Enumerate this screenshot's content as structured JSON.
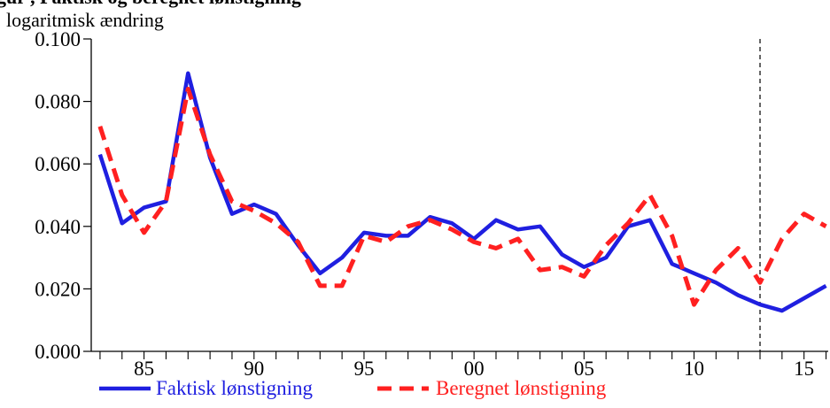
{
  "chart_data": {
    "type": "line",
    "title": "",
    "ylabel": "logaritmisk ændring",
    "xlabel": "",
    "ylim": [
      0,
      0.1
    ],
    "xlim": [
      1982.6,
      2016.1
    ],
    "grid": false,
    "legend_position": "bottom",
    "y_ticks": [
      "0.000",
      "0.020",
      "0.040",
      "0.060",
      "0.080",
      "0.100"
    ],
    "y_tick_values": [
      0,
      0.02,
      0.04,
      0.06,
      0.08,
      0.1
    ],
    "x_ticks": [
      "85",
      "90",
      "95",
      "00",
      "05",
      "10",
      "15"
    ],
    "x_tick_years": [
      1985,
      1990,
      1995,
      2000,
      2005,
      2010,
      2015
    ],
    "forecast_marker_year": 2013,
    "colors": {
      "actual": "#1f1fe0",
      "estimated": "#ff2020",
      "marker": "#000000"
    },
    "x": [
      1983,
      1984,
      1985,
      1986,
      1987,
      1988,
      1989,
      1990,
      1991,
      1992,
      1993,
      1994,
      1995,
      1996,
      1997,
      1998,
      1999,
      2000,
      2001,
      2002,
      2003,
      2004,
      2005,
      2006,
      2007,
      2008,
      2009,
      2010,
      2011,
      2012,
      2013,
      2014,
      2015,
      2016
    ],
    "series": [
      {
        "name": "Faktisk lønstigning",
        "style": "solid",
        "color": "#1f1fe0",
        "values": [
          0.063,
          0.041,
          0.046,
          0.048,
          0.089,
          0.062,
          0.044,
          0.047,
          0.044,
          0.034,
          0.025,
          0.03,
          0.038,
          0.037,
          0.037,
          0.043,
          0.041,
          0.036,
          0.042,
          0.039,
          0.04,
          0.031,
          0.027,
          0.03,
          0.04,
          0.042,
          0.028,
          0.025,
          0.022,
          0.018,
          0.015,
          0.013,
          0.017,
          0.021
        ]
      },
      {
        "name": "Beregnet lønstigning",
        "style": "dashed",
        "color": "#ff2020",
        "values": [
          0.072,
          0.05,
          0.038,
          0.048,
          0.084,
          0.063,
          0.048,
          0.045,
          0.041,
          0.035,
          0.021,
          0.021,
          0.037,
          0.035,
          0.04,
          0.042,
          0.039,
          0.035,
          0.033,
          0.036,
          0.026,
          0.027,
          0.024,
          0.034,
          0.041,
          0.05,
          0.037,
          0.015,
          0.026,
          0.033,
          0.022,
          0.036,
          0.044,
          0.04
        ]
      }
    ]
  },
  "header": {
    "clipped_title": "gur   , Faktisk og beregnet lønstigning"
  }
}
